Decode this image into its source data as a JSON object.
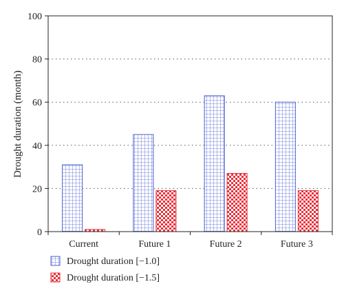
{
  "chart_data": {
    "type": "bar",
    "categories": [
      "Current",
      "Future 1",
      "Future 2",
      "Future 3"
    ],
    "series": [
      {
        "name": "Drought duration [−1.0]",
        "values": [
          31,
          45,
          63,
          60
        ],
        "color": "#4a5fd0",
        "pattern": "grid"
      },
      {
        "name": "Drought duration [−1.5]",
        "values": [
          1,
          19,
          27,
          19
        ],
        "color": "#e8303a",
        "pattern": "checker"
      }
    ],
    "title": "",
    "xlabel": "",
    "ylabel": "Drought duration (month)",
    "ylim": [
      0,
      100
    ],
    "yticks": [
      0,
      20,
      40,
      60,
      80,
      100
    ],
    "grid": "horizontal dotted",
    "legend": "bottom-left"
  }
}
